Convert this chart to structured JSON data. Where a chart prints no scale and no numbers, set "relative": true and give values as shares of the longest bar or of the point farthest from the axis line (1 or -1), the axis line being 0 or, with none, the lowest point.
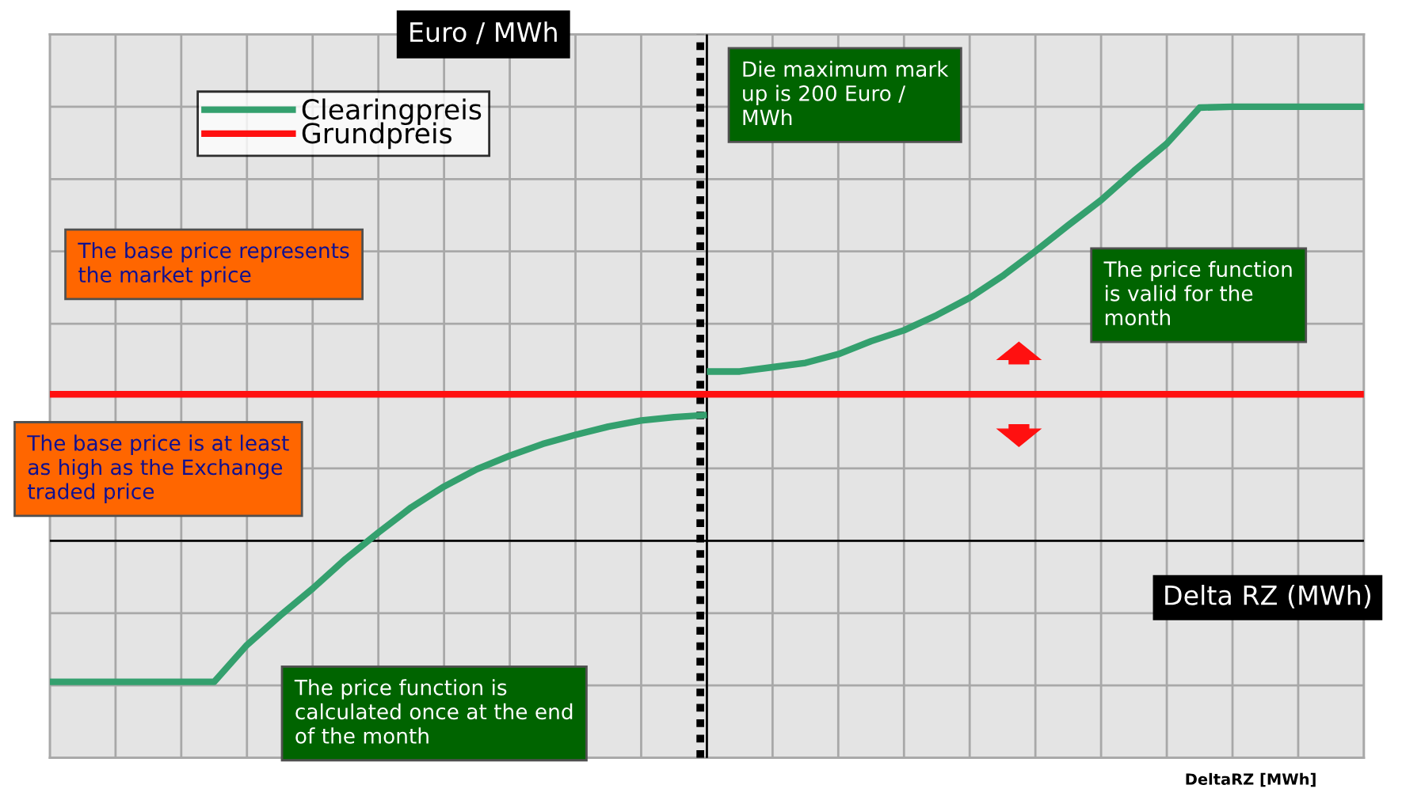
{
  "chart_data": {
    "type": "line",
    "relative": true,
    "ylabel": "Euro / MWh",
    "xlabel": "Delta RZ (MWh)",
    "categories": [
      null,
      null,
      null,
      null,
      null,
      null,
      null,
      null,
      null,
      null,
      null,
      null,
      null,
      null,
      null,
      null,
      null,
      null,
      null,
      null,
      null,
      null,
      null,
      null,
      null,
      null,
      null,
      null,
      null,
      null,
      null,
      null,
      null,
      null,
      null,
      null,
      null,
      null,
      null,
      null,
      null
    ],
    "series": [
      {
        "name": "Clearingpreis",
        "color": "#34a06e",
        "values": [
          -0.325,
          -0.325,
          -0.325,
          -0.325,
          -0.325,
          -0.325,
          -0.24,
          -0.173,
          -0.11,
          -0.042,
          0.019,
          0.077,
          0.125,
          0.165,
          0.196,
          0.223,
          0.244,
          0.263,
          0.277,
          0.285,
          0.29,
          null,
          null,
          null,
          null,
          null,
          null,
          null,
          null,
          null,
          null,
          null,
          null,
          null,
          null,
          null,
          null,
          null,
          null,
          null,
          null
        ]
      },
      {
        "name": "Grundpreis",
        "color": "#ff1010",
        "values": [
          0.3375,
          0.3375,
          0.3375,
          0.3375,
          0.3375,
          0.3375,
          0.3375,
          0.3375,
          0.3375,
          0.3375,
          0.3375,
          0.3375,
          0.3375,
          0.3375,
          0.3375,
          0.3375,
          0.3375,
          0.3375,
          0.3375,
          0.3375,
          0.3375,
          0.3375,
          0.3375,
          0.3375,
          0.3375,
          0.3375,
          0.3375,
          0.3375,
          0.3375,
          0.3375,
          0.3375,
          0.3375,
          0.3375,
          0.3375,
          0.3375,
          0.3375,
          0.3375,
          0.3375,
          0.3375,
          0.3375,
          0.3375
        ]
      },
      {
        "color": "#34a06e",
        "values": [
          null,
          null,
          null,
          null,
          null,
          null,
          null,
          null,
          null,
          null,
          null,
          null,
          null,
          null,
          null,
          null,
          null,
          null,
          null,
          null,
          0.39,
          0.39,
          0.4,
          0.41,
          0.43,
          0.46,
          0.485,
          0.52,
          0.56,
          0.61,
          0.667,
          0.727,
          0.785,
          0.852,
          0.915,
          0.998,
          1,
          1,
          1,
          1,
          1
        ]
      }
    ],
    "annotations": [
      "Die maximum mark\nup is 200 Euro /\nMWh",
      "The base price represents\nthe market price",
      "The price function\nis valid for the\nmonth",
      "The base price is at least\nas high as the Exchange\ntraded price",
      "The price function is\ncalculated once at the end\nof the month",
      "DeltaRZ [MWh]"
    ],
    "grid": true,
    "legend": "top left"
  }
}
